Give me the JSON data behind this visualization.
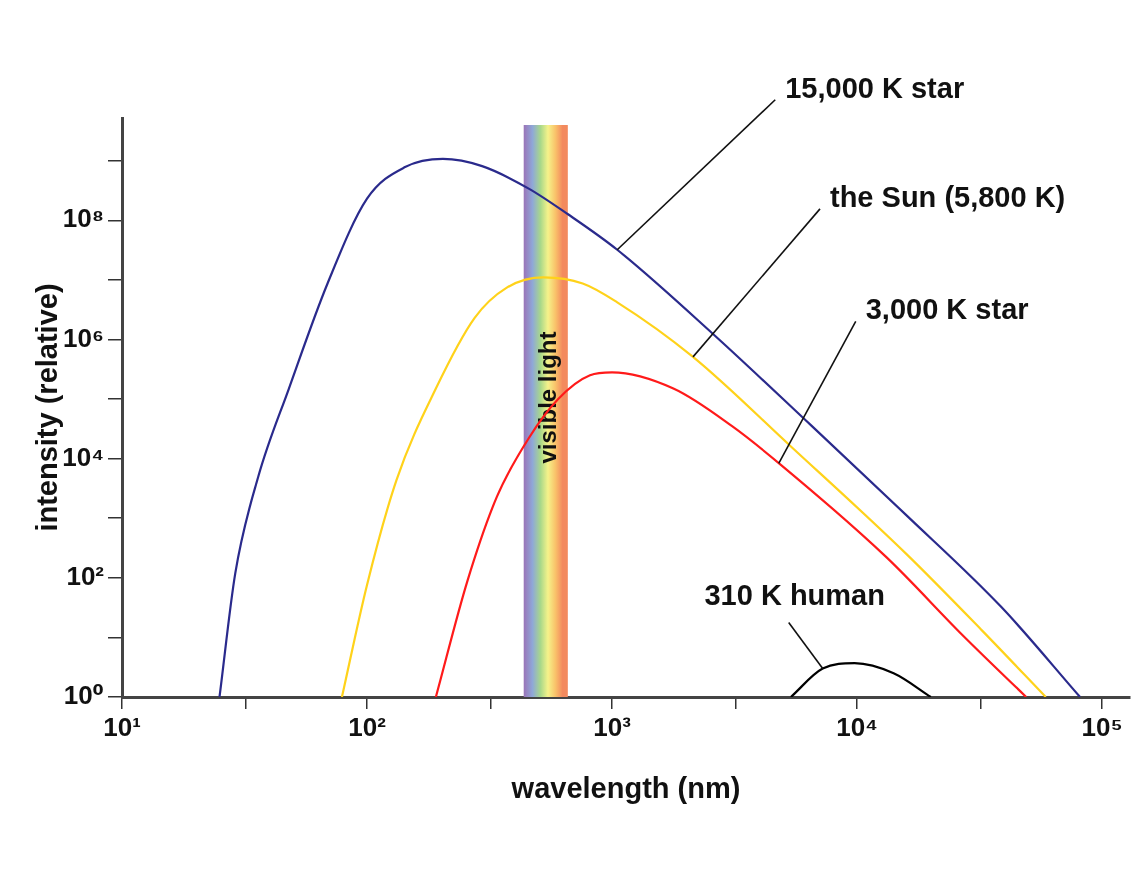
{
  "chart_data": {
    "type": "line",
    "xlabel": "wavelength (nm)",
    "ylabel": "intensity (relative)",
    "log": "xy",
    "xlim": [
      10,
      130000
    ],
    "ylim": [
      1,
      5200000000
    ],
    "xticks": [
      {
        "value": 10,
        "label": "10¹"
      },
      {
        "value": 32,
        "label": null
      },
      {
        "value": 100,
        "label": "10²"
      },
      {
        "value": 320,
        "label": null
      },
      {
        "value": 1000,
        "label": "10³"
      },
      {
        "value": 3200,
        "label": null
      },
      {
        "value": 10000,
        "label": "10⁴"
      },
      {
        "value": 32000,
        "label": null
      },
      {
        "value": 100000,
        "label": "10⁵"
      }
    ],
    "yticks": [
      {
        "value": 1,
        "label": "10⁰"
      },
      {
        "value": 10,
        "label": null
      },
      {
        "value": 100,
        "label": "10²"
      },
      {
        "value": 1000,
        "label": null
      },
      {
        "value": 10000,
        "label": "10⁴"
      },
      {
        "value": 100000,
        "label": null
      },
      {
        "value": 1000000,
        "label": "10⁶"
      },
      {
        "value": 10000000,
        "label": null
      },
      {
        "value": 100000000,
        "label": "10⁸"
      },
      {
        "value": 1000000000,
        "label": null
      }
    ],
    "grid": false,
    "legend": false,
    "marker": "none",
    "line_style": "solid",
    "series": [
      {
        "color": "#2a2a8c",
        "x": [
          25,
          29,
          36,
          48,
          69,
          100,
          143,
          204,
          295,
          457,
          661,
          1050,
          2570,
          6170,
          15800,
          38900,
          81300
        ],
        "values": [
          1,
          120,
          5000,
          150000,
          8700000,
          230000000,
          780000000,
          1070000000,
          810000000,
          340000000,
          126000000,
          32000000,
          1260000,
          44000,
          1150,
          32,
          1
        ]
      },
      {
        "color": "#ffd21a",
        "x": [
          79,
          100,
          132,
          191,
          275,
          372,
          525,
          759,
          1050,
          2140,
          5370,
          15800,
          32400,
          58900
        ],
        "values": [
          1,
          76,
          4400,
          150000,
          2300000,
          7400000,
          11000000,
          8700000,
          4200000,
          510000,
          16000,
          257,
          13,
          1
        ]
      },
      {
        "color": "#ff1a1a",
        "x": [
          191,
          257,
          339,
          457,
          603,
          813,
          1000,
          1780,
          3090,
          4900,
          13200,
          26900,
          49000
        ],
        "values": [
          1,
          89,
          2300,
          22000,
          100000,
          250000,
          280000,
          150000,
          35000,
          7800,
          220,
          11,
          1
        ]
      },
      {
        "color": "#000000",
        "x": [
          5370,
          7240,
          9770,
          14100,
          20000
        ],
        "values": [
          1,
          3.0,
          3.7,
          2.5,
          1
        ]
      }
    ],
    "bands": [
      {
        "axis": "x",
        "from": 436,
        "to": 660,
        "label": "visible light"
      }
    ],
    "annotations": [
      {
        "text": "15,000 K star",
        "x": 1050,
        "y": 32000000
      },
      {
        "text": "the Sun (5,800 K)",
        "x": 2140,
        "y": 510000
      },
      {
        "text": "3,000 K star",
        "x": 4790,
        "y": 8300
      },
      {
        "text": "310 K human",
        "x": 7240,
        "y": 3.0
      }
    ]
  }
}
